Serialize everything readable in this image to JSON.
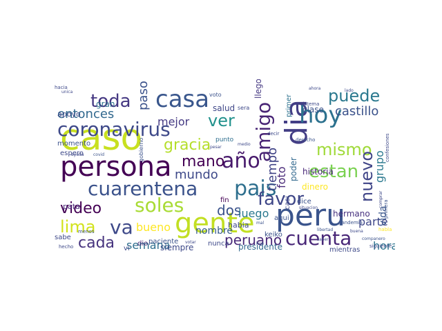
{
  "word_cloud": {
    "words": [
      {
        "text": "caso",
        "color": "#c8e020"
      },
      {
        "text": "persona",
        "color": "#440154"
      },
      {
        "text": "gente",
        "color": "#c2df23"
      },
      {
        "text": "peru",
        "color": "#3a548c"
      },
      {
        "text": "dia",
        "color": "#433e85"
      },
      {
        "text": "casa",
        "color": "#39568c"
      },
      {
        "text": "coronavirus",
        "color": "#3e4989"
      },
      {
        "text": "hoy",
        "color": "#2c718e"
      },
      {
        "text": "cuarentena",
        "color": "#3b528b"
      },
      {
        "text": "año",
        "color": "#481a6c"
      },
      {
        "text": "pais",
        "color": "#2e6f8e"
      },
      {
        "text": "soles",
        "color": "#a8db34"
      },
      {
        "text": "cuenta",
        "color": "#482677"
      },
      {
        "text": "mismo",
        "color": "#a0da39"
      },
      {
        "text": "amigo",
        "color": "#482475"
      },
      {
        "text": "favor",
        "color": "#3f4788"
      },
      {
        "text": "estan",
        "color": "#7ad151"
      },
      {
        "text": "ver",
        "color": "#21918c"
      },
      {
        "text": "toda",
        "color": "#453882"
      },
      {
        "text": "puede",
        "color": "#2a788e"
      },
      {
        "text": "gracia",
        "color": "#b5de2b"
      },
      {
        "text": "mano",
        "color": "#440154"
      },
      {
        "text": "va",
        "color": "#3e4989"
      },
      {
        "text": "video",
        "color": "#440154"
      },
      {
        "text": "lima",
        "color": "#d2e21b"
      },
      {
        "text": "cada",
        "color": "#46337e"
      },
      {
        "text": "nuevo",
        "color": "#404588"
      },
      {
        "text": "entonces",
        "color": "#31688e"
      },
      {
        "text": "castillo",
        "color": "#3b528b"
      },
      {
        "text": "mundo",
        "color": "#3e4989"
      },
      {
        "text": "tiempo",
        "color": "#414487"
      },
      {
        "text": "dos",
        "color": "#3b528b"
      },
      {
        "text": "hora",
        "color": "#2c728e"
      },
      {
        "text": "peruano",
        "color": "#482878"
      },
      {
        "text": "luego",
        "color": "#2a788e"
      },
      {
        "text": "semana",
        "color": "#2e6e8e"
      },
      {
        "text": "bueno",
        "color": "#fde725"
      },
      {
        "text": "mejor",
        "color": "#443983"
      },
      {
        "text": "foto",
        "color": "#482878"
      },
      {
        "text": "paso",
        "color": "#3b528b"
      },
      {
        "text": "grupo",
        "color": "#2a788e"
      },
      {
        "text": "parte",
        "color": "#3f4788"
      },
      {
        "text": "vida",
        "color": "#39568c"
      },
      {
        "text": "historia",
        "color": "#482677"
      },
      {
        "text": "nombre",
        "color": "#365c8d"
      },
      {
        "text": "presidente",
        "color": "#31688e"
      },
      {
        "text": "siempre",
        "color": "#3e4989"
      },
      {
        "text": "dinero",
        "color": "#fde725"
      },
      {
        "text": "hermano",
        "color": "#46307e"
      },
      {
        "text": "clase",
        "color": "#3b528b"
      },
      {
        "text": "llego",
        "color": "#453882"
      },
      {
        "text": "salud",
        "color": "#3f4788"
      },
      {
        "text": "poder",
        "color": "#31688e"
      },
      {
        "text": "primer",
        "color": "#2c728e"
      },
      {
        "text": "gran",
        "color": "#2c718e"
      },
      {
        "text": "apoyo",
        "color": "#3e4989"
      },
      {
        "text": "momento",
        "color": "#3b528b"
      },
      {
        "text": "espero",
        "color": "#3e4989"
      },
      {
        "text": "habia",
        "color": "#3e4989"
      },
      {
        "text": "pata",
        "color": "#482878"
      },
      {
        "text": "aqui",
        "color": "#3b528b"
      },
      {
        "text": "casi",
        "color": "#3e4989"
      },
      {
        "text": "dice",
        "color": "#3b528b"
      },
      {
        "text": "fin",
        "color": "#440154"
      },
      {
        "text": "sabe",
        "color": "#3e4989"
      },
      {
        "text": "paciente",
        "color": "#3b528b"
      },
      {
        "text": "nunca",
        "color": "#3e4989"
      },
      {
        "text": "dio",
        "color": "#482878"
      },
      {
        "text": "vi",
        "color": "#3e4989"
      },
      {
        "text": "keiko",
        "color": "#3b528b"
      },
      {
        "text": "mientras",
        "color": "#3e4989"
      },
      {
        "text": "punto",
        "color": "#2e6e8e"
      },
      {
        "text": "gobierno",
        "color": "#3b528b"
      },
      {
        "text": "sera",
        "color": "#3e4989"
      },
      {
        "text": "voto",
        "color": "#3b528b"
      },
      {
        "text": "ahora",
        "color": "#3e4989"
      },
      {
        "text": "situacion",
        "color": "#3e4989"
      },
      {
        "text": "sistema",
        "color": "#3e4989"
      },
      {
        "text": "derecho",
        "color": "#3b528b"
      },
      {
        "text": "siguiente",
        "color": "#3e4989"
      },
      {
        "text": "primera",
        "color": "#3b528b"
      },
      {
        "text": "hacia",
        "color": "#3e4989"
      },
      {
        "text": "hecho",
        "color": "#3e4989"
      },
      {
        "text": "menos",
        "color": "#3b528b"
      },
      {
        "text": "decir",
        "color": "#3e4989"
      },
      {
        "text": "pesar",
        "color": "#3e4989"
      },
      {
        "text": "medio",
        "color": "#3e4989"
      },
      {
        "text": "covid",
        "color": "#3b528b"
      },
      {
        "text": "ayuda",
        "color": "#3e4989"
      },
      {
        "text": "pandemia",
        "color": "#3b528b"
      },
      {
        "text": "saber",
        "color": "#3e4989"
      },
      {
        "text": "buena",
        "color": "#3e4989"
      },
      {
        "text": "libertad",
        "color": "#3b528b"
      },
      {
        "text": "votar",
        "color": "#3e4989"
      },
      {
        "text": "hijo",
        "color": "#3e4989"
      },
      {
        "text": "mal",
        "color": "#3b528b"
      },
      {
        "text": "confesiones",
        "color": "#3e4989"
      },
      {
        "text": "companero",
        "color": "#3b528b"
      },
      {
        "text": "habla",
        "color": "#fde725"
      },
      {
        "text": "lado",
        "color": "#3e4989"
      },
      {
        "text": "comprar",
        "color": "#3e4989"
      },
      {
        "text": "unica",
        "color": "#3e4989"
      }
    ]
  }
}
